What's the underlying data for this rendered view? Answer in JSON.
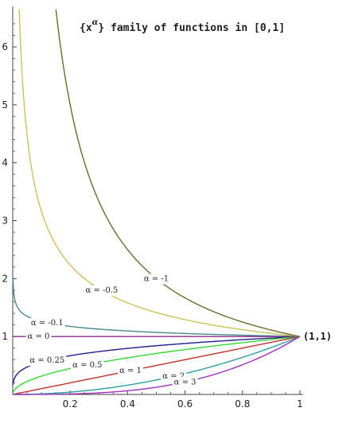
{
  "chart_data": {
    "type": "line",
    "title_prefix": "{x",
    "title_sup": "α",
    "title_suffix": "} family of functions in [0,1]",
    "xlabel": "",
    "ylabel": "",
    "xlim": [
      0,
      1
    ],
    "ylim": [
      0,
      6.7
    ],
    "xticks": [
      0.2,
      0.4,
      0.6,
      0.8,
      1
    ],
    "xtick_labels": [
      "0.2",
      "0.4",
      "0.6",
      "0.8",
      "1"
    ],
    "yticks": [
      1,
      2,
      3,
      4,
      5,
      6
    ],
    "ytick_labels": [
      "1",
      "2",
      "3",
      "4",
      "5",
      "6"
    ],
    "grid": false,
    "point_annotation": {
      "x": 1,
      "y": 1,
      "text": "(1,1)"
    },
    "series": [
      {
        "alpha": -1,
        "label": "α = -1",
        "label_x": 0.5,
        "color": "#6b6b2a"
      },
      {
        "alpha": -0.5,
        "label": "α = -0.5",
        "label_x": 0.31,
        "color": "#c4c45a"
      },
      {
        "alpha": -0.1,
        "label": "α = -0.1",
        "label_x": 0.12,
        "color": "#4a8a8a"
      },
      {
        "alpha": 0,
        "label": "α = 0",
        "label_x": 0.09,
        "color": "#8a2e8a"
      },
      {
        "alpha": 0.25,
        "label": "α = 0.25",
        "label_x": 0.12,
        "color": "#1e1e8c"
      },
      {
        "alpha": 0.5,
        "label": "α = 0.5",
        "label_x": 0.26,
        "color": "#33d433"
      },
      {
        "alpha": 1,
        "label": "α = 1",
        "label_x": 0.41,
        "color": "#c0302a"
      },
      {
        "alpha": 2,
        "label": "α = 2",
        "label_x": 0.56,
        "color": "#2aa0a0"
      },
      {
        "alpha": 3,
        "label": "α = 3",
        "label_x": 0.6,
        "color": "#a030c0"
      }
    ]
  }
}
